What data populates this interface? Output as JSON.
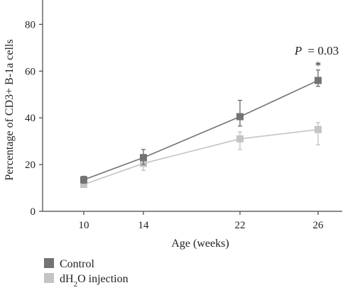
{
  "chart_data": {
    "type": "line",
    "x": [
      10,
      14,
      22,
      26
    ],
    "xticks": [
      "10",
      "14",
      "22",
      "26"
    ],
    "yticks": [
      "0",
      "20",
      "40",
      "60",
      "80"
    ],
    "ylim": [
      0,
      88
    ],
    "xlabel": "Age (weeks)",
    "ylabel": "Percentage of CD3+ B-1a cells",
    "series": [
      {
        "name": "Control",
        "color": "#737373",
        "values": [
          13.5,
          23,
          40.5,
          56
        ],
        "err_low": [
          1.5,
          3,
          4,
          2.5
        ],
        "err_high": [
          1.5,
          3.5,
          7,
          4.5
        ]
      },
      {
        "name": "dH2O injection",
        "color": "#c4c4c4",
        "values": [
          11.5,
          20.5,
          31,
          35
        ],
        "err_low": [
          1,
          3,
          4.5,
          6.5
        ],
        "err_high": [
          1,
          2,
          3,
          3
        ]
      }
    ],
    "annotation": {
      "text": "= 0.03",
      "italic_prefix": "P",
      "star": "*",
      "x": 26
    },
    "legend": {
      "placement": "bottom-left",
      "dh2o_parts": [
        "dH",
        "2",
        "O injection"
      ]
    },
    "grid": false
  }
}
